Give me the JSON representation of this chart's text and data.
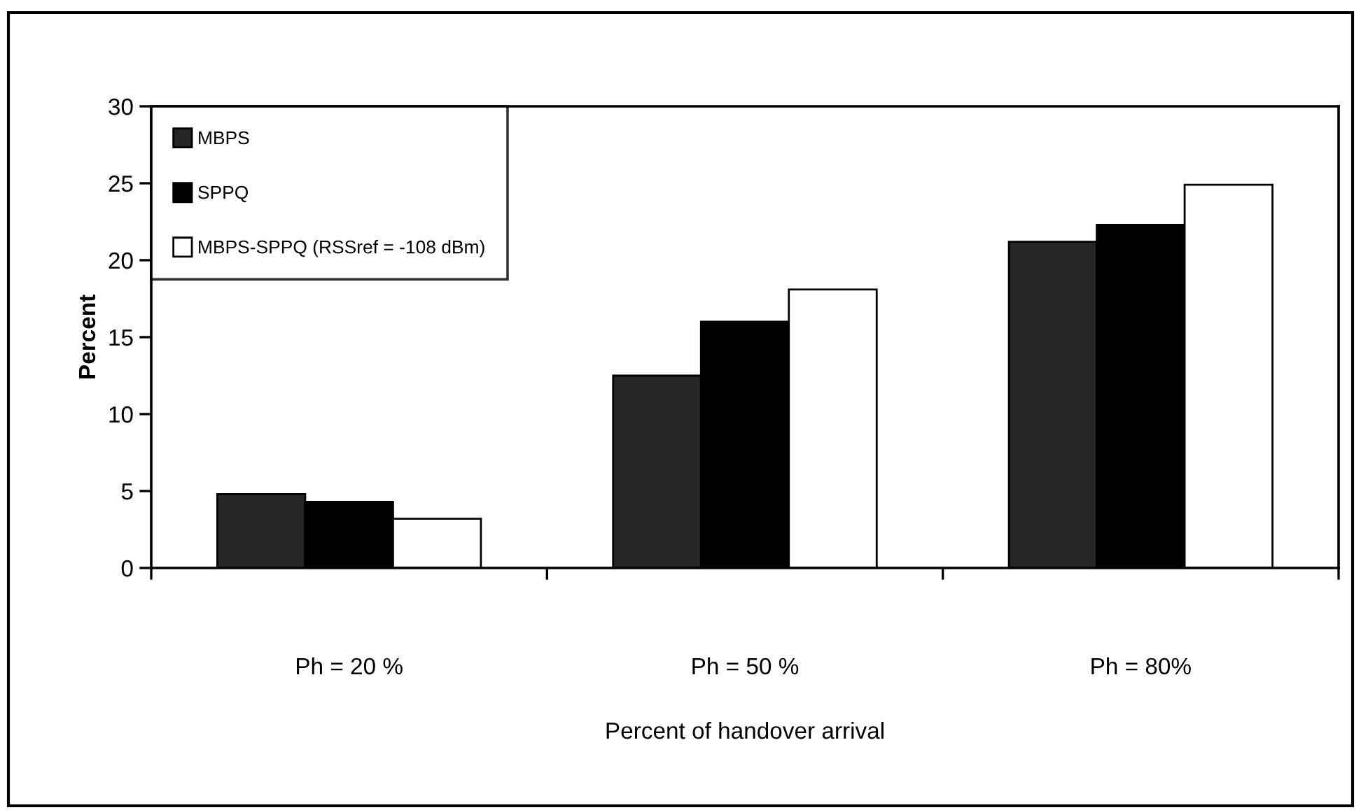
{
  "chart_data": {
    "type": "bar",
    "xlabel": "Percent of handover arrival",
    "ylabel": "Percent",
    "categories": [
      "Ph = 20 %",
      "Ph = 50 %",
      "Ph = 80%"
    ],
    "series": [
      {
        "name": "MBPS",
        "color": "#262626",
        "values": [
          4.8,
          12.5,
          21.2
        ]
      },
      {
        "name": "SPPQ",
        "color": "#000000",
        "values": [
          4.3,
          16.0,
          22.3
        ]
      },
      {
        "name": "MBPS-SPPQ (RSSref = -108 dBm)",
        "color": "#ffffff",
        "values": [
          3.2,
          18.1,
          24.9
        ]
      }
    ],
    "ylim": [
      0,
      30
    ],
    "yticks": [
      0,
      5,
      10,
      15,
      20,
      25,
      30
    ],
    "legend": "top left"
  }
}
